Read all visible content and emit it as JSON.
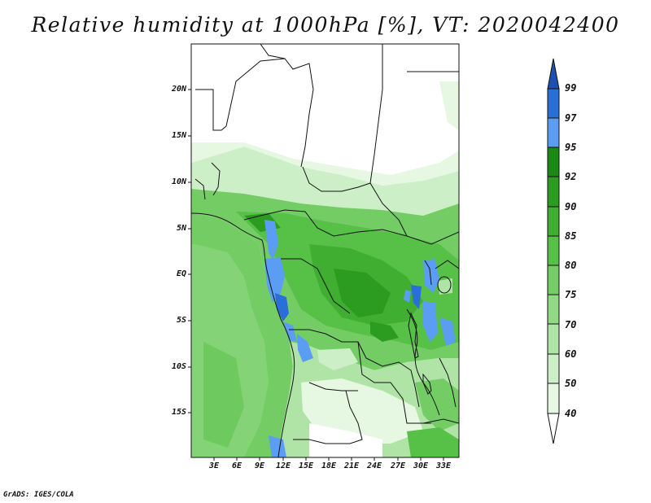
{
  "title": "Relative humidity at 1000hPa [%], VT: 2020042400",
  "credit": "GrADS: IGES/COLA",
  "map": {
    "region": "Central Africa",
    "lat_labels": [
      "20N",
      "15N",
      "10N",
      "5N",
      "EQ",
      "5S",
      "10S",
      "15S"
    ],
    "lon_labels": [
      "3E",
      "6E",
      "9E",
      "12E",
      "15E",
      "18E",
      "21E",
      "24E",
      "27E",
      "30E",
      "33E"
    ]
  },
  "colorbar": {
    "levels": [
      "40",
      "50",
      "60",
      "70",
      "75",
      "80",
      "85",
      "90",
      "92",
      "95",
      "97",
      "99"
    ],
    "colors": [
      "#ffffff",
      "#e6f7e2",
      "#cdefc7",
      "#b0e4a6",
      "#92d985",
      "#74cd64",
      "#57c047",
      "#3fae31",
      "#2b9c20",
      "#1a8a14",
      "#5a9df2",
      "#2a6fd8",
      "#1f4fb0"
    ]
  }
}
